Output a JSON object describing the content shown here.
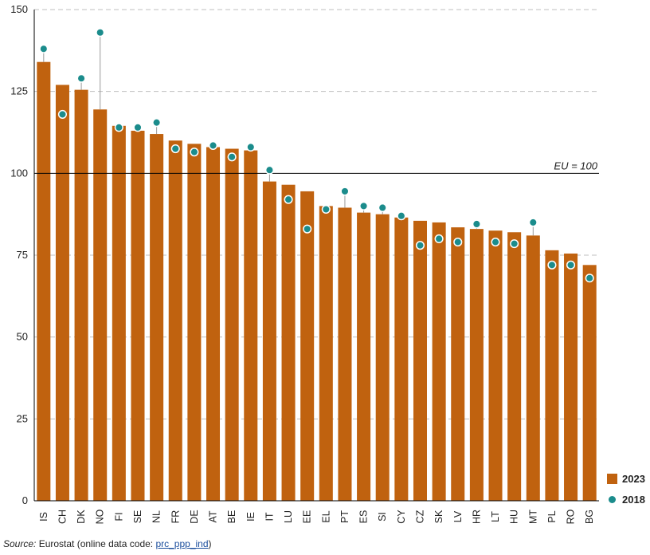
{
  "colors": {
    "bar": "#c0620f",
    "dot": "#1b8c8c",
    "grid": "#bfbfbf",
    "reference_line": "#000000",
    "axis": "#000000"
  },
  "chart_data": {
    "type": "bar",
    "categories": [
      "IS",
      "CH",
      "DK",
      "NO",
      "FI",
      "SE",
      "NL",
      "FR",
      "DE",
      "AT",
      "BE",
      "IE",
      "IT",
      "LU",
      "EE",
      "EL",
      "PT",
      "ES",
      "SI",
      "CY",
      "CZ",
      "SK",
      "LV",
      "HR",
      "LT",
      "HU",
      "MT",
      "PL",
      "RO",
      "BG"
    ],
    "series": [
      {
        "name": "2023",
        "type": "bar",
        "values": [
          134,
          127,
          125.5,
          119.5,
          114.5,
          113,
          112,
          110,
          109,
          108,
          107.5,
          107,
          97.5,
          96.5,
          94.5,
          90,
          89.5,
          88,
          87.5,
          86.5,
          85.5,
          85,
          83.5,
          83,
          82.5,
          82,
          81,
          76.5,
          75.5,
          72
        ]
      },
      {
        "name": "2018",
        "type": "scatter",
        "values": [
          138,
          118,
          129,
          143,
          114,
          114,
          115.5,
          107.5,
          106.5,
          108.5,
          105,
          108,
          101,
          92,
          83,
          89,
          94.5,
          90,
          89.5,
          87,
          78,
          80,
          79,
          84.5,
          79,
          78.5,
          85,
          72,
          72,
          68
        ]
      }
    ],
    "yticks": [
      0,
      25,
      50,
      75,
      100,
      125,
      150
    ],
    "ylim": [
      0,
      150
    ],
    "reference_line": {
      "value": 100,
      "label": "EU = 100"
    },
    "grid": "dashed horizontal",
    "legend_position": "bottom-right"
  },
  "source": {
    "label": "Source:",
    "text": " Eurostat (online data code: ",
    "code": "prc_ppp_ind",
    "end": ")"
  }
}
